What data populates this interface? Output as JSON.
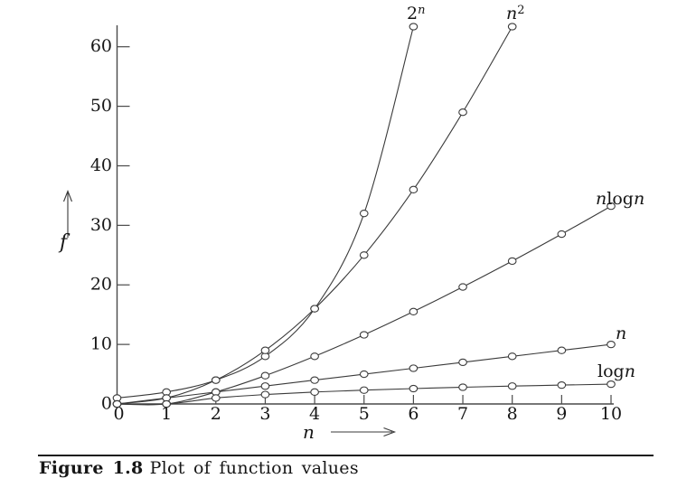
{
  "figure": {
    "caption_bold": "Figure 1.8",
    "caption_rest": "Plot of function values"
  },
  "curve_labels": {
    "two_n": {
      "base": "2",
      "sup": "n"
    },
    "n_squared": {
      "base": "n",
      "sup": "2"
    },
    "n_log_n": {
      "n1": "n",
      "log": "log",
      "n2": "n"
    },
    "n": {
      "n": "n"
    },
    "log_n": {
      "log": "log",
      "n": "n"
    }
  },
  "chart_data": {
    "type": "line",
    "title": "",
    "xlabel": "n",
    "ylabel": "f",
    "xlim": [
      0,
      10
    ],
    "ylim": [
      0,
      64
    ],
    "grid": false,
    "legend_position": "end-of-curve",
    "marker": "open-circle",
    "line_color": "#3a3a3a",
    "x_ticks": [
      "0",
      "1",
      "2",
      "3",
      "4",
      "5",
      "6",
      "7",
      "8",
      "9",
      "10"
    ],
    "y_ticks": [
      "0",
      "10",
      "20",
      "30",
      "40",
      "50",
      "60"
    ],
    "series": [
      {
        "key": "two-n",
        "name": "2^n",
        "x": [
          0,
          1,
          2,
          3,
          4,
          5,
          6
        ],
        "y": [
          1,
          2,
          4,
          8,
          16,
          32,
          64
        ]
      },
      {
        "key": "n-squared",
        "name": "n^2",
        "x": [
          0,
          1,
          2,
          3,
          4,
          5,
          6,
          7,
          8
        ],
        "y": [
          0,
          1,
          4,
          9,
          16,
          25,
          36,
          49,
          64
        ]
      },
      {
        "key": "n-log-n",
        "name": "n log n",
        "x": [
          0,
          1,
          2,
          3,
          4,
          5,
          6,
          7,
          8,
          9,
          10
        ],
        "y": [
          0,
          0,
          2,
          4.75,
          8,
          11.61,
          15.51,
          19.65,
          24,
          28.53,
          33.22
        ]
      },
      {
        "key": "n",
        "name": "n",
        "x": [
          0,
          1,
          2,
          3,
          4,
          5,
          6,
          7,
          8,
          9,
          10
        ],
        "y": [
          0,
          1,
          2,
          3,
          4,
          5,
          6,
          7,
          8,
          9,
          10
        ]
      },
      {
        "key": "log-n",
        "name": "log n",
        "x": [
          0,
          1,
          2,
          3,
          4,
          5,
          6,
          7,
          8,
          9,
          10
        ],
        "y": [
          0,
          0,
          1,
          1.58,
          2,
          2.32,
          2.58,
          2.81,
          3,
          3.17,
          3.32
        ]
      }
    ]
  }
}
